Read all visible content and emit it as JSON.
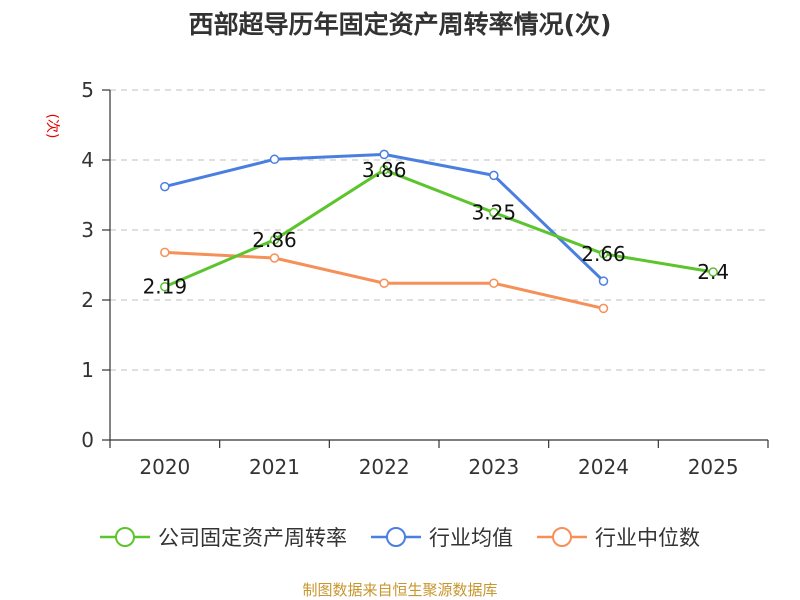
{
  "chart_data": {
    "type": "line",
    "title": "西部超导历年固定资产周转率情况(次)",
    "ylabel": "(次)",
    "xlabel": "",
    "categories": [
      "2020",
      "2021",
      "2022",
      "2023",
      "2024",
      "2025"
    ],
    "ylim": [
      0,
      5
    ],
    "yticks": [
      "0",
      "1",
      "2",
      "3",
      "4",
      "5"
    ],
    "grid": true,
    "legend_position": "bottom",
    "series": [
      {
        "name": "公司固定资产周转率",
        "color": "#5cc42d",
        "values": [
          2.19,
          2.86,
          3.86,
          3.25,
          2.66,
          2.4
        ],
        "labels": [
          "2.19",
          "2.86",
          "3.86",
          "3.25",
          "2.66",
          "2.4"
        ]
      },
      {
        "name": "行业均值",
        "color": "#4a7fe0",
        "values": [
          3.62,
          4.01,
          4.08,
          3.78,
          2.27,
          null
        ]
      },
      {
        "name": "行业中位数",
        "color": "#f59058",
        "values": [
          2.68,
          2.6,
          2.24,
          2.24,
          1.88,
          null
        ]
      }
    ],
    "source": "制图数据来自恒生聚源数据库"
  }
}
